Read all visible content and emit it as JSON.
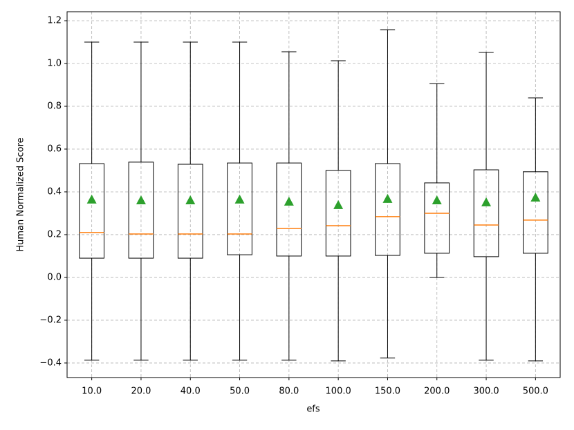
{
  "chart_data": {
    "type": "box",
    "x_label": "efs",
    "y_label": "Human Normalized Score",
    "categories": [
      "10.0",
      "20.0",
      "40.0",
      "50.0",
      "80.0",
      "100.0",
      "150.0",
      "200.0",
      "300.0",
      "500.0"
    ],
    "min": [
      -0.387,
      -0.387,
      -0.387,
      -0.387,
      -0.387,
      -0.39,
      -0.377,
      0.0,
      -0.387,
      -0.39
    ],
    "q1": [
      0.09,
      0.09,
      0.09,
      0.106,
      0.1,
      0.1,
      0.103,
      0.113,
      0.097,
      0.113
    ],
    "median": [
      0.21,
      0.203,
      0.203,
      0.203,
      0.229,
      0.242,
      0.284,
      0.3,
      0.245,
      0.268
    ],
    "q3": [
      0.532,
      0.539,
      0.529,
      0.535,
      0.535,
      0.5,
      0.532,
      0.442,
      0.503,
      0.494
    ],
    "max": [
      1.1,
      1.1,
      1.1,
      1.1,
      1.055,
      1.013,
      1.158,
      0.906,
      1.052,
      0.839
    ],
    "mean": [
      0.365,
      0.361,
      0.361,
      0.365,
      0.355,
      0.339,
      0.368,
      0.361,
      0.352,
      0.374
    ],
    "box_color": "#000000",
    "median_color": "#ff7f0e",
    "mean_color": "#2ca02c",
    "ylim": [
      -0.468,
      1.242
    ],
    "yticks": [
      {
        "value": -0.4,
        "label": "−0.4"
      },
      {
        "value": -0.2,
        "label": "−0.2"
      },
      {
        "value": 0,
        "label": "0.0"
      },
      0.2,
      0.4,
      0.6,
      0.8,
      {
        "value": 1,
        "label": "1.0"
      },
      1.2
    ],
    "grid": true
  }
}
